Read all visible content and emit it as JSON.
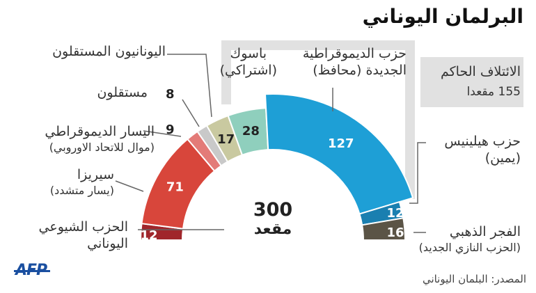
{
  "title": "البرلمان اليوناني",
  "coalition": {
    "title": "الائتلاف الحاكم",
    "seats_text": "155 مقعدا"
  },
  "total": {
    "value": "300",
    "unit": "مقعد"
  },
  "source": "المصدر: البلمان اليوناني",
  "logo": "AFP",
  "colors": {
    "coalition_frame": "#e1e1e1",
    "logo": "#1a4fa0"
  },
  "chart_data": {
    "type": "pie",
    "subtype": "semicircle-parliament",
    "total": 300,
    "order": "left-to-right",
    "series": [
      {
        "name": "الحزب الشيوعي اليوناني",
        "value": 12,
        "color": "#a0262b"
      },
      {
        "name": "سيريزا (يسار متشدد)",
        "value": 71,
        "color": "#d8463b"
      },
      {
        "name": "اليسار الديموقراطي (موال للاتحاد الاوروبي)",
        "value": 9,
        "color": "#e37b78"
      },
      {
        "name": "مستقلون",
        "value": 8,
        "color": "#c9c9c9"
      },
      {
        "name": "اليونانيون المستقلون",
        "value": 17,
        "color": "#c9c9a0"
      },
      {
        "name": "باسوك (اشتراكي)",
        "value": 28,
        "color": "#8fcfbd"
      },
      {
        "name": "حزب الديموقراطية الجديدة (محافظ)",
        "value": 127,
        "color": "#1e9fd6"
      },
      {
        "name": "حزب هيلينيس (يمين)",
        "value": 12,
        "color": "#1a7fb0"
      },
      {
        "name": "الفجر الذهبي (الحزب النازي الجديد)",
        "value": 16,
        "color": "#5b5446"
      }
    ]
  },
  "labels": {
    "kke": {
      "line1": "الحزب الشيوعي",
      "line2": "اليوناني"
    },
    "syriza": {
      "line1": "سيريزا",
      "line2": "(يسار متشدد)"
    },
    "dimar": {
      "line1": "اليسار الديموقراطي",
      "line2": "(موال للاتحاد الاوروبي)"
    },
    "independents": {
      "line1": "مستقلون"
    },
    "anel": {
      "line1": "اليونانيون المستقلون"
    },
    "pasok": {
      "line1": "باسوك",
      "line2": "(اشتراكي)"
    },
    "nd": {
      "line1": "حزب الديموقراطية",
      "line2": "الجديدة (محافظ)"
    },
    "hellenes": {
      "line1": "حزب هيلينيس",
      "line2": "(يمين)"
    },
    "golden": {
      "line1": "الفجر الذهبي",
      "line2": "(الحزب النازي الجديد)"
    }
  }
}
